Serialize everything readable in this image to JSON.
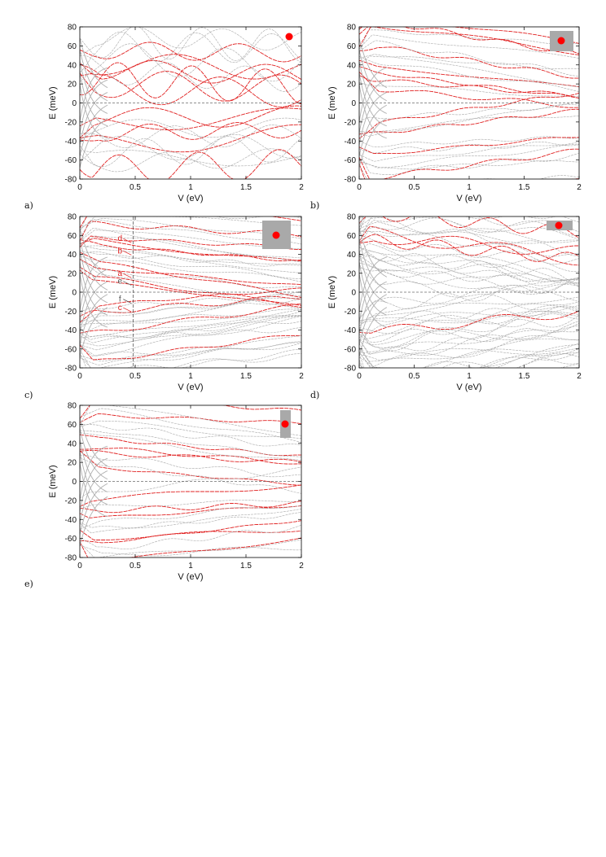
{
  "figure": {
    "panel_labels": [
      "a)",
      "b)",
      "c)",
      "d)",
      "e)"
    ]
  },
  "chart_data": [
    {
      "panel": "a)",
      "type": "line",
      "xlabel": "V (eV)",
      "ylabel": "E (meV)",
      "xlim": [
        0,
        2
      ],
      "ylim": [
        -80,
        80
      ],
      "xticks": [
        "0",
        "0.5",
        "1",
        "1.5",
        "2"
      ],
      "yticks": [
        "-80",
        "-60",
        "-40",
        "-20",
        "0",
        "20",
        "40",
        "60",
        "80"
      ],
      "zero_line": true,
      "series_colors": {
        "highlighted": "#e02020",
        "other": "#a8a8a8"
      },
      "inset": {
        "shape": "dot-only",
        "dot_color": "#ff0000"
      },
      "band_style": "oscillating",
      "band_count": 22,
      "red_fraction": 0.4,
      "seed": 11
    },
    {
      "panel": "b)",
      "type": "line",
      "xlabel": "V (eV)",
      "ylabel": "E (meV)",
      "xlim": [
        0,
        2
      ],
      "ylim": [
        -80,
        80
      ],
      "xticks": [
        "0",
        "0.5",
        "1",
        "1.5",
        "2"
      ],
      "yticks": [
        "-80",
        "-60",
        "-40",
        "-20",
        "0",
        "20",
        "40",
        "60",
        "80"
      ],
      "zero_line": true,
      "series_colors": {
        "highlighted": "#e02020",
        "other": "#a8a8a8"
      },
      "inset": {
        "shape": "square",
        "dot_color": "#ff0000",
        "box_color": "#a9a9a9"
      },
      "band_style": "fan",
      "band_count": 30,
      "red_fraction": 0.35,
      "seed": 23
    },
    {
      "panel": "c)",
      "type": "line",
      "xlabel": "V (eV)",
      "ylabel": "E (meV)",
      "xlim": [
        0,
        2
      ],
      "ylim": [
        -80,
        80
      ],
      "xticks": [
        "0",
        "0.5",
        "1",
        "1.5",
        "2"
      ],
      "yticks": [
        "-80",
        "-60",
        "-40",
        "-20",
        "0",
        "20",
        "40",
        "60",
        "80"
      ],
      "zero_line": true,
      "vline_x": 0.48,
      "series_colors": {
        "highlighted": "#e02020",
        "other": "#a8a8a8"
      },
      "inset": {
        "shape": "square-large",
        "dot_color": "#ff0000",
        "box_color": "#a9a9a9"
      },
      "band_style": "fan-dense",
      "band_count": 46,
      "red_fraction": 0.3,
      "seed": 37,
      "annotations": [
        {
          "label": "d",
          "y": 54,
          "color": "#e02020"
        },
        {
          "label": "b",
          "y": 41,
          "color": "#e02020"
        },
        {
          "label": "a",
          "y": 17,
          "color": "#e02020"
        },
        {
          "label": "e",
          "y": 9,
          "color": "#555555"
        },
        {
          "label": "f",
          "y": -10,
          "color": "#555555"
        },
        {
          "label": "c",
          "y": -19,
          "color": "#e02020"
        }
      ]
    },
    {
      "panel": "d)",
      "type": "line",
      "xlabel": "V (eV)",
      "ylabel": "E (meV)",
      "xlim": [
        0,
        2
      ],
      "ylim": [
        -80,
        80
      ],
      "xticks": [
        "0",
        "0.5",
        "1",
        "1.5",
        "2"
      ],
      "yticks": [
        "-80",
        "-60",
        "-40",
        "-20",
        "0",
        "20",
        "40",
        "60",
        "80"
      ],
      "zero_line": true,
      "series_colors": {
        "highlighted": "#e02020",
        "other": "#a8a8a8"
      },
      "inset": {
        "shape": "wide-rect",
        "dot_color": "#ff0000",
        "box_color": "#a9a9a9"
      },
      "band_style": "dense-gray",
      "band_count": 56,
      "red_fraction": 0.05,
      "seed": 51
    },
    {
      "panel": "e)",
      "type": "line",
      "xlabel": "V (eV)",
      "ylabel": "E (meV)",
      "xlim": [
        0,
        2
      ],
      "ylim": [
        -80,
        80
      ],
      "xticks": [
        "0",
        "0.5",
        "1",
        "1.5",
        "2"
      ],
      "yticks": [
        "-80",
        "-60",
        "-40",
        "-20",
        "0",
        "20",
        "40",
        "60",
        "80"
      ],
      "zero_line": true,
      "series_colors": {
        "highlighted": "#e02020",
        "other": "#a8a8a8"
      },
      "inset": {
        "shape": "tall-rect",
        "dot_color": "#ff0000",
        "box_color": "#a9a9a9"
      },
      "band_style": "fan",
      "band_count": 28,
      "red_fraction": 0.45,
      "seed": 67
    }
  ]
}
